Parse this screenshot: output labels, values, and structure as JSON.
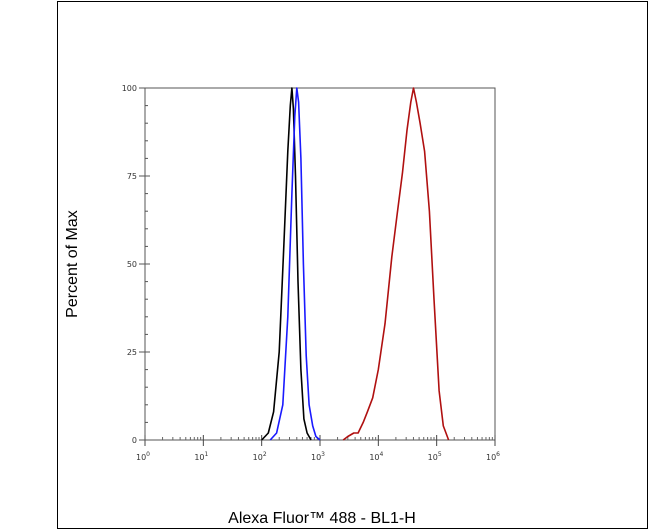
{
  "chart_data": {
    "type": "line",
    "xlabel": "Alexa Fluor™ 488 - BL1-H",
    "ylabel": "Percent of Max",
    "x_scale": "log",
    "xlim": [
      1,
      1000000
    ],
    "ylim": [
      0,
      100
    ],
    "x_ticks": [
      {
        "value": 1,
        "base": "10",
        "exp": "0"
      },
      {
        "value": 10,
        "base": "10",
        "exp": "1"
      },
      {
        "value": 100,
        "base": "10",
        "exp": "2"
      },
      {
        "value": 1000,
        "base": "10",
        "exp": "3"
      },
      {
        "value": 10000,
        "base": "10",
        "exp": "4"
      },
      {
        "value": 100000,
        "base": "10",
        "exp": "5"
      },
      {
        "value": 1000000,
        "base": "10",
        "exp": "6"
      }
    ],
    "y_ticks": [
      0,
      25,
      50,
      75,
      100
    ],
    "grid": false,
    "series": [
      {
        "color": "#000000",
        "points": [
          [
            100,
            0
          ],
          [
            130,
            2
          ],
          [
            160,
            8
          ],
          [
            200,
            25
          ],
          [
            240,
            55
          ],
          [
            280,
            82
          ],
          [
            310,
            95
          ],
          [
            330,
            100
          ],
          [
            350,
            94
          ],
          [
            380,
            75
          ],
          [
            420,
            45
          ],
          [
            470,
            20
          ],
          [
            530,
            6
          ],
          [
            600,
            2
          ],
          [
            700,
            0
          ]
        ]
      },
      {
        "color": "#1a1aff",
        "points": [
          [
            140,
            0
          ],
          [
            180,
            2
          ],
          [
            230,
            10
          ],
          [
            280,
            35
          ],
          [
            330,
            70
          ],
          [
            370,
            92
          ],
          [
            400,
            100
          ],
          [
            430,
            96
          ],
          [
            470,
            80
          ],
          [
            520,
            50
          ],
          [
            580,
            24
          ],
          [
            650,
            10
          ],
          [
            750,
            4
          ],
          [
            850,
            1
          ],
          [
            1000,
            0
          ]
        ]
      },
      {
        "color": "#b01010",
        "points": [
          [
            2500,
            0
          ],
          [
            3000,
            1
          ],
          [
            3800,
            2
          ],
          [
            4500,
            2
          ],
          [
            5500,
            5
          ],
          [
            6500,
            8
          ],
          [
            8000,
            12
          ],
          [
            10000,
            20
          ],
          [
            13000,
            33
          ],
          [
            17000,
            52
          ],
          [
            21000,
            64
          ],
          [
            26000,
            76
          ],
          [
            31000,
            88
          ],
          [
            36000,
            96
          ],
          [
            40000,
            100
          ],
          [
            45000,
            96
          ],
          [
            52000,
            90
          ],
          [
            62000,
            82
          ],
          [
            75000,
            65
          ],
          [
            90000,
            40
          ],
          [
            110000,
            14
          ],
          [
            130000,
            4
          ],
          [
            160000,
            0
          ]
        ]
      }
    ]
  }
}
